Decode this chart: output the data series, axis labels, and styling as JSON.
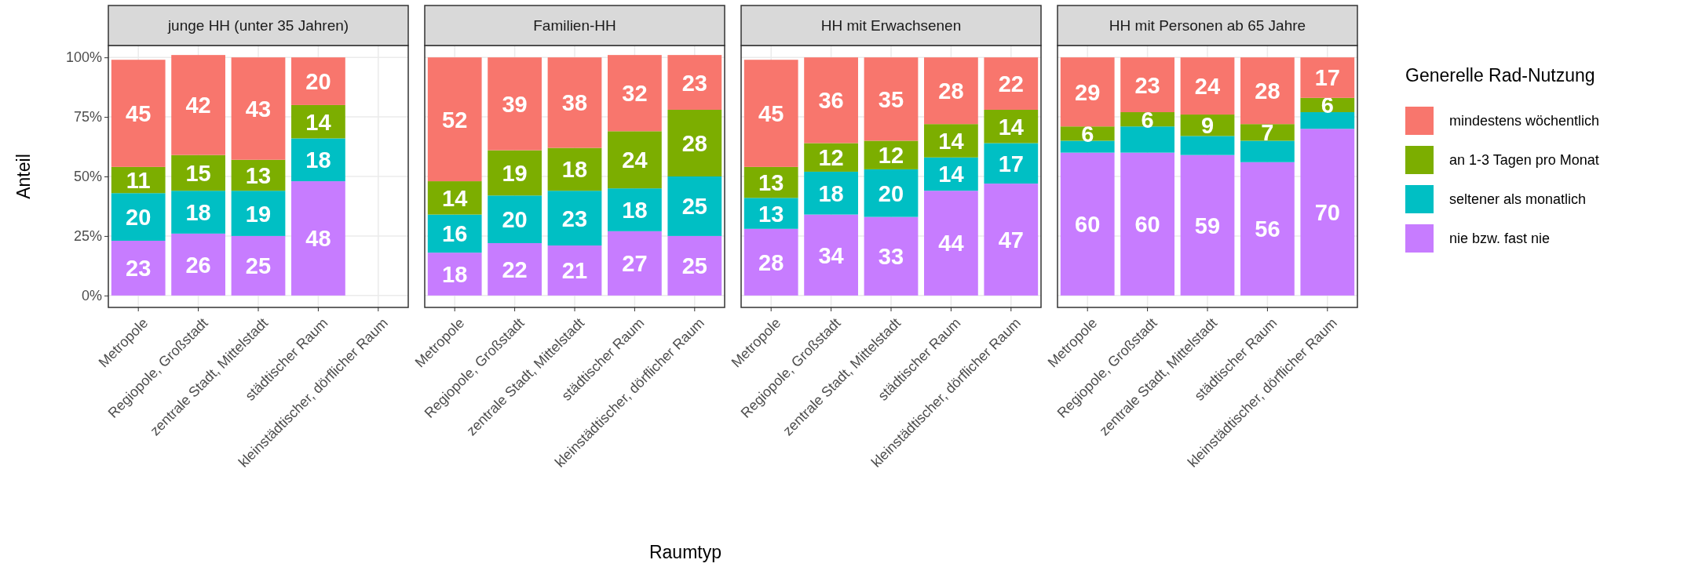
{
  "chart_data": [
    {
      "type": "bar",
      "stacked": true,
      "title": "junge HH (unter 35 Jahren)",
      "ylabel": "Anteil",
      "grid": true,
      "data_labels": true,
      "categories": [
        "Metropole",
        "Regiopole, Großstadt",
        "zentrale Stadt, Mittelstadt",
        "städtischer Raum",
        "kleinstädtischer, dörflicher Raum"
      ],
      "ylim": [
        -5,
        105
      ],
      "yticks": [
        {
          "value": 0,
          "label": "0%"
        },
        {
          "value": 25,
          "label": "25%"
        },
        {
          "value": 50,
          "label": "50%"
        },
        {
          "value": 75,
          "label": "75%"
        },
        {
          "value": 100,
          "label": "100%"
        }
      ],
      "series": [
        {
          "color": "#c77cff",
          "values": [
            23,
            26,
            25,
            48,
            null
          ]
        },
        {
          "color": "#00bfc4",
          "values": [
            20,
            18,
            19,
            18,
            null
          ]
        },
        {
          "color": "#7cae00",
          "values": [
            11,
            15,
            13,
            14,
            null
          ]
        },
        {
          "color": "#f8766d",
          "values": [
            45,
            42,
            43,
            20,
            null
          ]
        }
      ]
    },
    {
      "type": "bar",
      "stacked": true,
      "title": "Familien-HH",
      "xlabel": "Raumtyp",
      "grid": true,
      "data_labels": true,
      "tick_labels": "x",
      "categories": [
        "Metropole",
        "Regiopole, Großstadt",
        "zentrale Stadt, Mittelstadt",
        "städtischer Raum",
        "kleinstädtischer, dörflicher Raum"
      ],
      "ylim": [
        -5,
        105
      ],
      "yticks": [
        {
          "value": 0,
          "label": null
        },
        {
          "value": 25,
          "label": null
        },
        {
          "value": 50,
          "label": null
        },
        {
          "value": 75,
          "label": null
        },
        {
          "value": 100,
          "label": null
        }
      ],
      "series": [
        {
          "color": "#c77cff",
          "values": [
            18,
            22,
            21,
            27,
            25
          ]
        },
        {
          "color": "#00bfc4",
          "values": [
            16,
            20,
            23,
            18,
            25
          ]
        },
        {
          "color": "#7cae00",
          "values": [
            14,
            19,
            18,
            24,
            28
          ]
        },
        {
          "color": "#f8766d",
          "values": [
            52,
            39,
            38,
            32,
            23
          ]
        }
      ]
    },
    {
      "type": "bar",
      "stacked": true,
      "title": "HH mit Erwachsenen",
      "grid": true,
      "data_labels": true,
      "tick_labels": "x",
      "categories": [
        "Metropole",
        "Regiopole, Großstadt",
        "zentrale Stadt, Mittelstadt",
        "städtischer Raum",
        "kleinstädtischer, dörflicher Raum"
      ],
      "ylim": [
        -5,
        105
      ],
      "yticks": [
        {
          "value": 0,
          "label": null
        },
        {
          "value": 25,
          "label": null
        },
        {
          "value": 50,
          "label": null
        },
        {
          "value": 75,
          "label": null
        },
        {
          "value": 100,
          "label": null
        }
      ],
      "series": [
        {
          "color": "#c77cff",
          "values": [
            28,
            34,
            33,
            44,
            47
          ]
        },
        {
          "color": "#00bfc4",
          "values": [
            13,
            18,
            20,
            14,
            17
          ]
        },
        {
          "color": "#7cae00",
          "values": [
            13,
            12,
            12,
            14,
            14
          ]
        },
        {
          "color": "#f8766d",
          "values": [
            45,
            36,
            35,
            28,
            22
          ]
        }
      ]
    },
    {
      "type": "bar",
      "stacked": true,
      "title": "HH mit Personen ab 65 Jahre",
      "grid": true,
      "tick_labels": "x",
      "legend": "right",
      "legend_title": "Generelle Rad-Nutzung",
      "categories": [
        "Metropole",
        "Regiopole, Großstadt",
        "zentrale Stadt, Mittelstadt",
        "städtischer Raum",
        "kleinstädtischer, dörflicher Raum"
      ],
      "ylim": [
        -5,
        105
      ],
      "yticks": [
        {
          "value": 0,
          "label": null
        },
        {
          "value": 25,
          "label": null
        },
        {
          "value": 50,
          "label": null
        },
        {
          "value": 75,
          "label": null
        },
        {
          "value": 100,
          "label": null
        }
      ],
      "series": [
        {
          "name": "nie bzw. fast nie",
          "color": "#c77cff",
          "values": [
            60,
            60,
            59,
            56,
            70
          ],
          "value_labels": [
            "60",
            "60",
            "59",
            "56",
            "70"
          ]
        },
        {
          "name": "seltener als monatlich",
          "color": "#00bfc4",
          "values": [
            5,
            11,
            8,
            9,
            7
          ],
          "value_labels": [
            null,
            null,
            null,
            null,
            null
          ]
        },
        {
          "name": "an 1-3 Tagen pro Monat",
          "color": "#7cae00",
          "values": [
            6,
            6,
            9,
            7,
            6
          ],
          "value_labels": [
            "6",
            "6",
            "9",
            "7",
            "6"
          ]
        },
        {
          "name": "mindestens wöchentlich",
          "color": "#f8766d",
          "values": [
            29,
            23,
            24,
            28,
            17
          ],
          "value_labels": [
            "29",
            "23",
            "24",
            "28",
            "17"
          ]
        }
      ]
    }
  ]
}
